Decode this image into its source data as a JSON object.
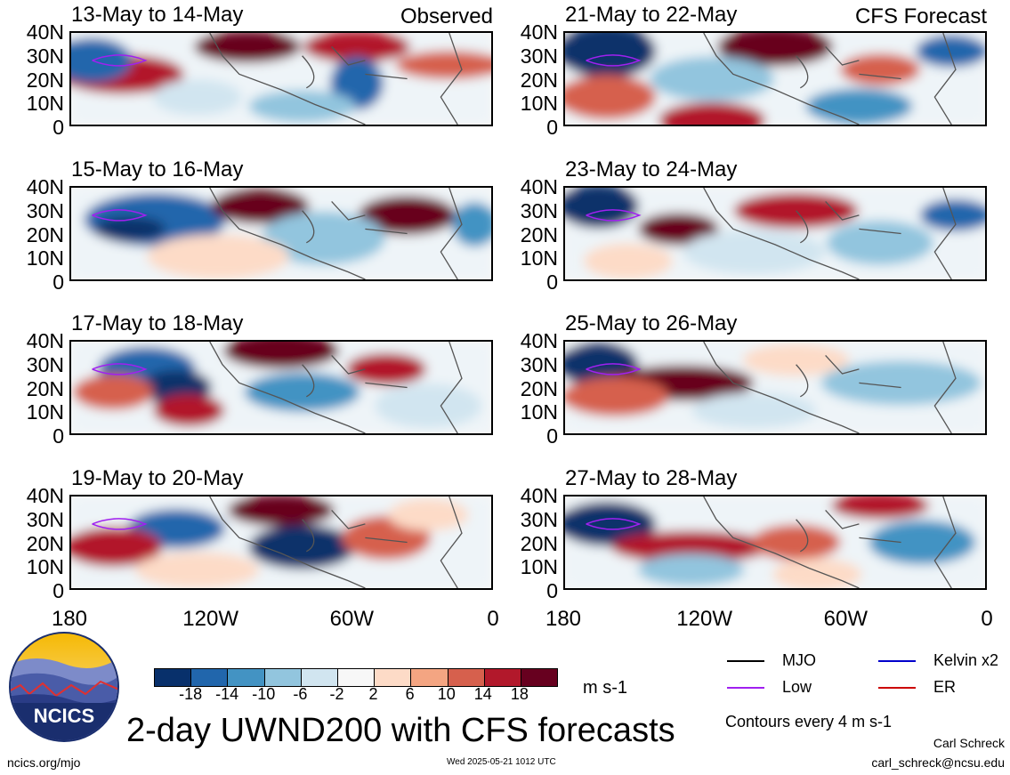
{
  "panels": [
    {
      "title": "13-May to 14-May",
      "corner": "Observed",
      "lats": [
        "40N",
        "30N",
        "20N",
        "10N",
        "0"
      ],
      "theme": "obs1"
    },
    {
      "title": "21-May to 22-May",
      "corner": "CFS Forecast",
      "lats": [
        "40N",
        "30N",
        "20N",
        "10N",
        "0"
      ],
      "theme": "f1"
    },
    {
      "title": "15-May to 16-May",
      "corner": "",
      "lats": [
        "40N",
        "30N",
        "20N",
        "10N",
        "0"
      ],
      "theme": "obs2"
    },
    {
      "title": "23-May to 24-May",
      "corner": "",
      "lats": [
        "40N",
        "30N",
        "20N",
        "10N",
        "0"
      ],
      "theme": "f2"
    },
    {
      "title": "17-May to 18-May",
      "corner": "",
      "lats": [
        "40N",
        "30N",
        "20N",
        "10N",
        "0"
      ],
      "theme": "obs3"
    },
    {
      "title": "25-May to 26-May",
      "corner": "",
      "lats": [
        "40N",
        "30N",
        "20N",
        "10N",
        "0"
      ],
      "theme": "f3"
    },
    {
      "title": "19-May to 20-May",
      "corner": "",
      "lats": [
        "40N",
        "30N",
        "20N",
        "10N",
        "0"
      ],
      "theme": "obs4"
    },
    {
      "title": "27-May to 28-May",
      "corner": "",
      "lats": [
        "40N",
        "30N",
        "20N",
        "10N",
        "0"
      ],
      "theme": "f4"
    }
  ],
  "lon_labels": [
    "180",
    "120W",
    "60W",
    "0"
  ],
  "colorbar": {
    "colors": [
      "#08306b",
      "#2166ac",
      "#4393c3",
      "#92c5de",
      "#d1e5f0",
      "#f7f7f7",
      "#fddbc7",
      "#f4a582",
      "#d6604d",
      "#b2182b",
      "#67001f"
    ],
    "labels": [
      "-18",
      "-14",
      "-10",
      "-6",
      "-2",
      "2",
      "6",
      "10",
      "14",
      "18"
    ],
    "units": "m s-1"
  },
  "legend": [
    {
      "label": "MJO",
      "color": "#000000"
    },
    {
      "label": "Kelvin x2",
      "color": "#0000cc"
    },
    {
      "label": "Low",
      "color": "#a020f0"
    },
    {
      "label": "ER",
      "color": "#cc0000"
    }
  ],
  "contours_note": "Contours every 4 m s-1",
  "main_title": "2-day UWND200 with CFS forecasts",
  "logo_text": "NCICS",
  "footer": {
    "left": "ncics.org/mjo",
    "center": "Wed 2025-05-21 1012 UTC",
    "author": "Carl Schreck",
    "email": "carl_schreck@ncsu.edu"
  },
  "colors": {
    "positive": "#67001f",
    "negative": "#08306b",
    "land_outline": "#555555",
    "low_contour": "#a020f0"
  }
}
